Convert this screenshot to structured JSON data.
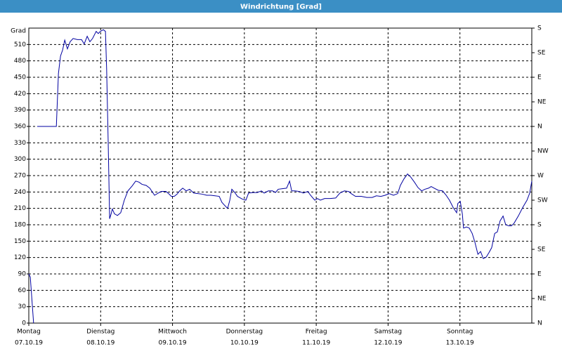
{
  "chart_data": {
    "type": "line",
    "title": "Windrichtung [Grad]",
    "y_label": "Grad",
    "color": "#0000a0",
    "grid": true,
    "xlim": [
      0,
      168
    ],
    "xticks": [
      {
        "value": 0,
        "label": "Montag"
      },
      {
        "value": 24,
        "label": "Dienstag"
      },
      {
        "value": 48,
        "label": "Mittwoch"
      },
      {
        "value": 72,
        "label": "Donnerstag"
      },
      {
        "value": 96,
        "label": "Freitag"
      },
      {
        "value": 120,
        "label": "Samstag"
      },
      {
        "value": 144,
        "label": "Sonntag"
      }
    ],
    "xtick_dates": [
      "07.10.19",
      "08.10.19",
      "09.10.19",
      "10.10.19",
      "11.10.19",
      "12.10.19",
      "13.10.19"
    ],
    "ylim": [
      0,
      540
    ],
    "yticks": [
      0,
      30,
      60,
      90,
      120,
      150,
      180,
      210,
      240,
      270,
      300,
      330,
      360,
      390,
      420,
      450,
      480,
      510
    ],
    "y2lim": [
      0,
      540
    ],
    "y2ticks": [
      {
        "value": 0,
        "label": "N"
      },
      {
        "value": 45,
        "label": "NE"
      },
      {
        "value": 90,
        "label": "E"
      },
      {
        "value": 135,
        "label": "SE"
      },
      {
        "value": 180,
        "label": "S"
      },
      {
        "value": 225,
        "label": "SW"
      },
      {
        "value": 270,
        "label": "W"
      },
      {
        "value": 315,
        "label": "NW"
      },
      {
        "value": 360,
        "label": "N"
      },
      {
        "value": 405,
        "label": "NE"
      },
      {
        "value": 450,
        "label": "E"
      },
      {
        "value": 495,
        "label": "SE"
      },
      {
        "value": 540,
        "label": "S"
      }
    ],
    "x": [
      0,
      0.5,
      1.6,
      null,
      2.8,
      9.2,
      9.9,
      10.6,
      11.3,
      12.0,
      12.9,
      13.8,
      14.8,
      16.2,
      17.6,
      18.5,
      19.5,
      20.4,
      21.3,
      22.5,
      23.2,
      23.9,
      24.9,
      25.6,
      26.0,
      26.5,
      27.0,
      27.5,
      27.9,
      28.6,
      29.6,
      30.7,
      31.9,
      33.1,
      34.5,
      35.7,
      36.8,
      37.8,
      39.2,
      40.4,
      42.0,
      43.2,
      44.3,
      45.8,
      46.7,
      47.6,
      48.6,
      49.5,
      50.4,
      51.4,
      52.6,
      53.7,
      55.1,
      56.5,
      58.0,
      59.4,
      60.8,
      62.2,
      63.6,
      64.5,
      65.5,
      66.4,
      67.1,
      67.8,
      68.8,
      69.7,
      71.3,
      72.5,
      73.4,
      74.9,
      76.3,
      77.7,
      78.6,
      80.0,
      81.4,
      82.4,
      83.3,
      84.7,
      86.1,
      87.1,
      87.8,
      88.9,
      90.3,
      91.7,
      93.2,
      94.1,
      95.5,
      96.4,
      97.4,
      98.8,
      100.7,
      102.5,
      103.9,
      105.4,
      106.8,
      107.7,
      109.1,
      111.0,
      112.9,
      114.7,
      116.1,
      117.6,
      119.0,
      120.4,
      121.8,
      123.2,
      124.1,
      125.3,
      126.5,
      127.6,
      128.8,
      130.0,
      131.2,
      132.3,
      133.5,
      134.4,
      135.4,
      136.8,
      138.2,
      139.4,
      140.5,
      141.7,
      142.9,
      143.3,
      144.1,
      144.8,
      145.2,
      146.2,
      147.1,
      148.1,
      149.0,
      150.0,
      150.9,
      151.8,
      152.8,
      153.7,
      154.6,
      155.6,
      156.5,
      157.4,
      158.4,
      159.3,
      160.3,
      161.2,
      162.1,
      163.5,
      165.0,
      166.4,
      167.3,
      168.0
    ],
    "values": [
      90,
      84,
      0,
      null,
      360,
      360,
      457,
      489,
      500,
      518,
      502,
      515,
      521,
      519,
      519,
      511,
      525,
      515,
      521,
      534,
      530,
      534,
      537,
      534,
      464,
      335,
      191,
      200,
      209,
      200,
      197,
      202,
      225,
      242,
      251,
      260,
      258,
      254,
      252,
      247,
      234,
      238,
      241,
      241,
      237,
      232,
      232,
      236,
      242,
      247,
      242,
      245,
      238,
      237,
      236,
      234,
      234,
      233,
      232,
      221,
      215,
      210,
      224,
      245,
      239,
      232,
      227,
      225,
      238,
      239,
      239,
      242,
      238,
      242,
      242,
      239,
      245,
      246,
      247,
      260,
      242,
      242,
      241,
      238,
      241,
      234,
      225,
      228,
      225,
      228,
      228,
      229,
      238,
      242,
      241,
      237,
      232,
      232,
      230,
      230,
      233,
      232,
      234,
      237,
      234,
      237,
      252,
      264,
      273,
      267,
      258,
      248,
      242,
      245,
      247,
      250,
      247,
      243,
      242,
      234,
      225,
      212,
      202,
      219,
      223,
      200,
      174,
      176,
      174,
      164,
      148,
      126,
      131,
      118,
      121,
      129,
      138,
      164,
      167,
      187,
      196,
      180,
      178,
      178,
      183,
      196,
      212,
      225,
      238,
      260
    ]
  }
}
